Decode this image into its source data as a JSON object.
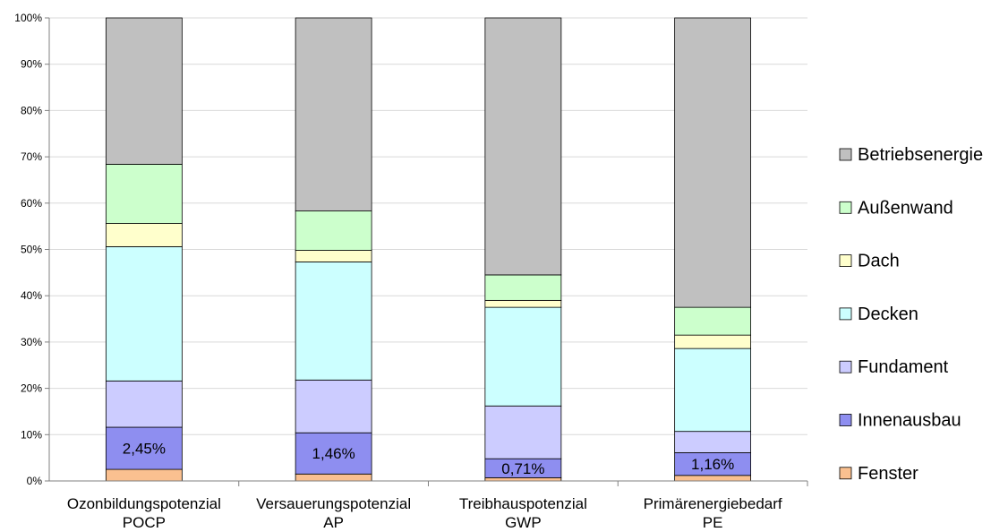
{
  "chart_data": {
    "type": "bar",
    "stacked": true,
    "categories": [
      "Ozonbildungspotenzial",
      "Versauerungspotenzial",
      "Treibhauspotenzial",
      "Primärenergiebedarf"
    ],
    "category_sublabels": [
      "POCP",
      "AP",
      "GWP",
      "PE"
    ],
    "ylim": [
      0,
      100
    ],
    "y_ticks": [
      "0%",
      "10%",
      "20%",
      "30%",
      "40%",
      "50%",
      "60%",
      "70%",
      "80%",
      "90%",
      "100%"
    ],
    "grid": true,
    "legend_position": "right",
    "series": [
      {
        "name": "Fenster",
        "color": "#fac090",
        "values": [
          2.5,
          1.5,
          0.7,
          1.2
        ]
      },
      {
        "name": "Innenausbau",
        "color": "#8e8ef0",
        "values": [
          9.1,
          8.9,
          4.1,
          4.9
        ]
      },
      {
        "name": "Fundament",
        "color": "#ccccff",
        "values": [
          10.0,
          11.4,
          11.4,
          4.6
        ]
      },
      {
        "name": "Decken",
        "color": "#ccffff",
        "values": [
          29.0,
          25.5,
          21.3,
          17.9
        ]
      },
      {
        "name": "Dach",
        "color": "#ffffcc",
        "values": [
          5.0,
          2.5,
          1.5,
          2.9
        ]
      },
      {
        "name": "Außenwand",
        "color": "#ccffcc",
        "values": [
          12.8,
          8.5,
          5.5,
          6.0
        ]
      },
      {
        "name": "Betriebsenergie",
        "color": "#c0c0c0",
        "values": [
          31.6,
          41.7,
          55.5,
          62.5
        ]
      }
    ],
    "data_labels": [
      "2,45%",
      "1,46%",
      "0,71%",
      "1,16%"
    ]
  }
}
